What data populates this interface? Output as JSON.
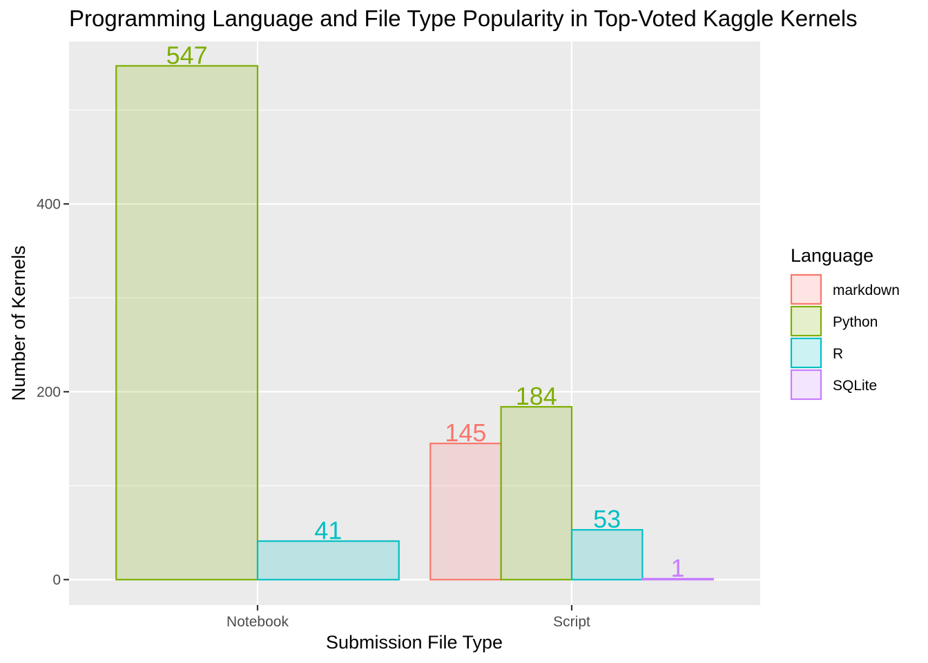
{
  "chart_data": {
    "type": "bar",
    "title": "Programming Language and File Type Popularity in Top-Voted Kaggle Kernels",
    "xlabel": "Submission File Type",
    "ylabel": "Number of Kernels",
    "categories": [
      "Notebook",
      "Script"
    ],
    "yticks": [
      0,
      200,
      400
    ],
    "ylim": [
      -27,
      573
    ],
    "grid": true,
    "legend": {
      "title": "Language",
      "placement": "right"
    },
    "series": [
      {
        "name": "markdown",
        "color": "#F8766D",
        "values": [
          null,
          145
        ]
      },
      {
        "name": "Python",
        "color": "#7CAE00",
        "values": [
          547,
          184
        ]
      },
      {
        "name": "R",
        "color": "#00BFC4",
        "values": [
          41,
          53
        ]
      },
      {
        "name": "SQLite",
        "color": "#C77CFF",
        "values": [
          null,
          1
        ]
      }
    ]
  }
}
